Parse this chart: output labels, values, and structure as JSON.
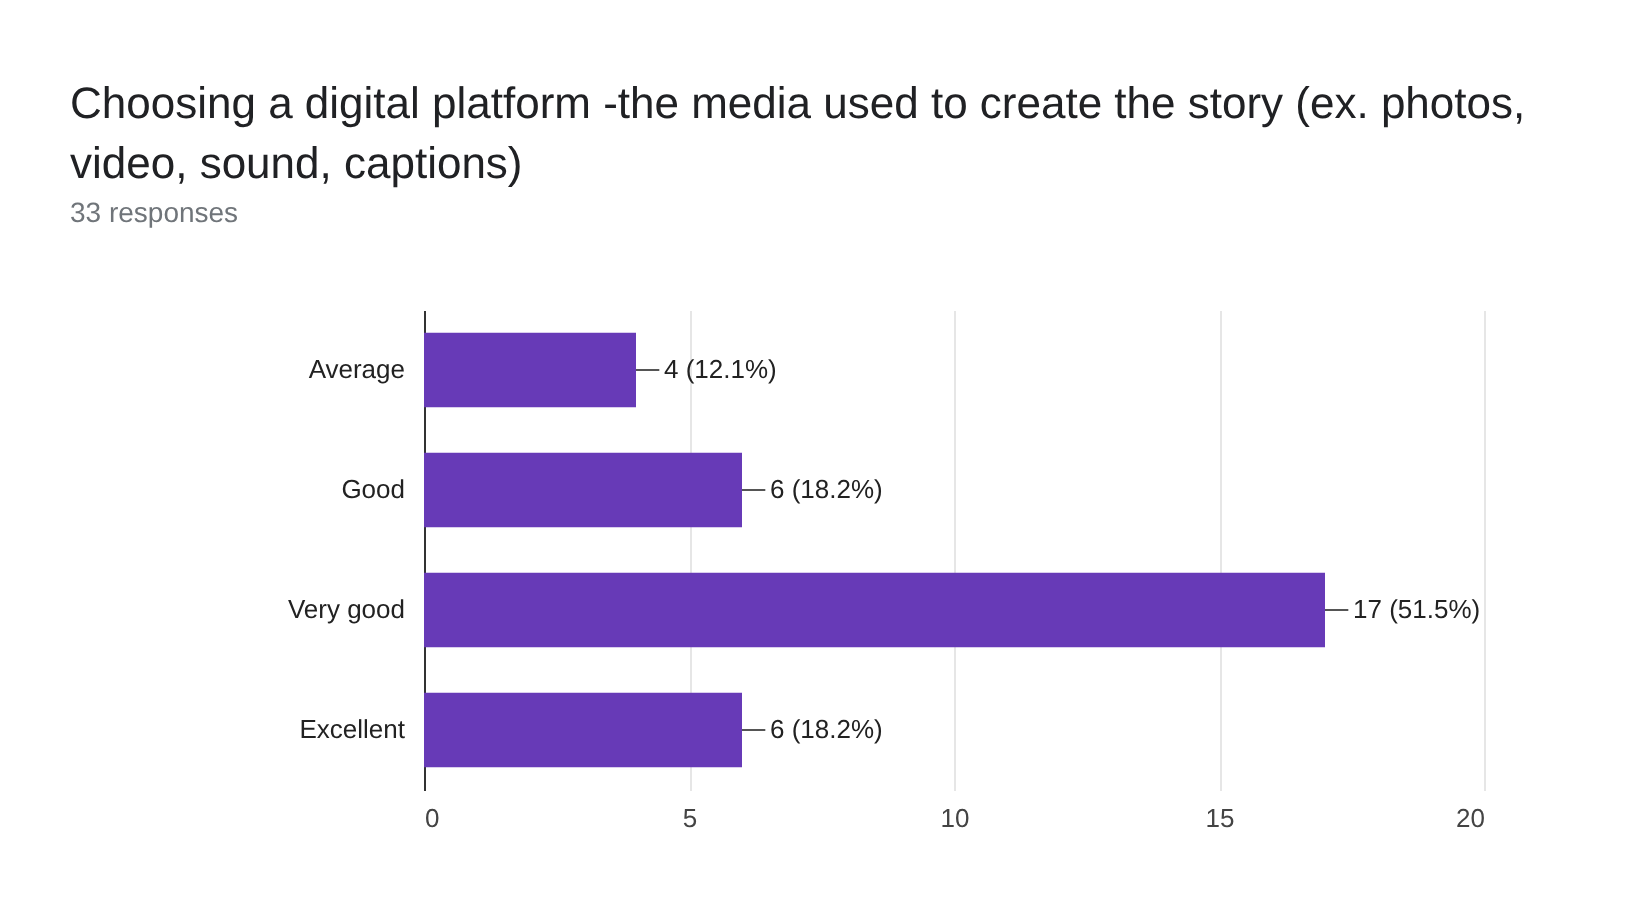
{
  "chart_data": {
    "type": "bar",
    "orientation": "horizontal",
    "title": "Choosing a digital platform -the media used to create the story (ex. photos, video, sound, captions)",
    "subtitle": "33 responses",
    "categories": [
      "Average",
      "Good",
      "Very good",
      "Excellent"
    ],
    "values": [
      4,
      6,
      17,
      6
    ],
    "value_labels": [
      "4 (12.1%)",
      "6 (18.2%)",
      "17 (51.5%)",
      "6 (18.2%)"
    ],
    "color": "#673ab7",
    "xlim": [
      0,
      20
    ],
    "xticks": [
      0,
      5,
      10,
      15,
      20
    ],
    "grid": "x"
  }
}
